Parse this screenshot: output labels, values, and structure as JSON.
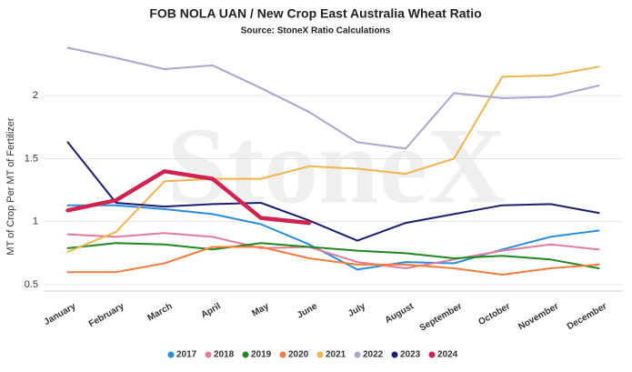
{
  "chart_data": {
    "type": "line",
    "title": "FOB NOLA UAN / New Crop East Australia Wheat Ratio",
    "subtitle": "Source: StoneX Ratio Calculations",
    "watermark": "StoneX",
    "y_label": "MT of Crop Per MT of Fertilizer",
    "categories": [
      "January",
      "February",
      "March",
      "April",
      "May",
      "June",
      "July",
      "August",
      "September",
      "October",
      "November",
      "December"
    ],
    "ylim": [
      0.45,
      2.47
    ],
    "yticks": [
      0.5,
      1.0,
      1.5,
      2.0
    ],
    "grid": true,
    "legend": "bottom",
    "series": [
      {
        "name": "2017",
        "color": "#2a8ee0",
        "width": 2,
        "values": [
          1.13,
          1.13,
          1.1,
          1.06,
          0.98,
          0.82,
          0.62,
          0.68,
          0.67,
          0.78,
          0.88,
          0.93
        ]
      },
      {
        "name": "2018",
        "color": "#e07c9c",
        "width": 2,
        "values": [
          0.9,
          0.88,
          0.91,
          0.88,
          0.79,
          0.8,
          0.68,
          0.63,
          0.7,
          0.77,
          0.82,
          0.78
        ]
      },
      {
        "name": "2019",
        "color": "#1e8a1e",
        "width": 2,
        "values": [
          0.79,
          0.83,
          0.82,
          0.78,
          0.83,
          0.8,
          0.77,
          0.75,
          0.71,
          0.73,
          0.7,
          0.63
        ]
      },
      {
        "name": "2020",
        "color": "#f47c3c",
        "width": 2,
        "values": [
          0.6,
          0.6,
          0.67,
          0.8,
          0.8,
          0.71,
          0.66,
          0.66,
          0.63,
          0.58,
          0.63,
          0.66
        ]
      },
      {
        "name": "2021",
        "color": "#f2b44c",
        "width": 2,
        "values": [
          0.76,
          0.92,
          1.32,
          1.34,
          1.34,
          1.44,
          1.42,
          1.38,
          1.5,
          2.15,
          2.16,
          2.23
        ]
      },
      {
        "name": "2022",
        "color": "#a9a6d0",
        "width": 2,
        "values": [
          2.38,
          2.3,
          2.21,
          2.24,
          2.06,
          1.87,
          1.63,
          1.58,
          2.02,
          1.98,
          1.99,
          2.08
        ]
      },
      {
        "name": "2023",
        "color": "#1a1f6e",
        "width": 2,
        "values": [
          1.63,
          1.15,
          1.12,
          1.14,
          1.15,
          1.01,
          0.85,
          0.99,
          1.06,
          1.13,
          1.14,
          1.07
        ]
      },
      {
        "name": "2024",
        "color": "#d0234f",
        "width": 4.5,
        "values": [
          1.09,
          1.17,
          1.4,
          1.34,
          1.03,
          0.99,
          null,
          null,
          null,
          null,
          null,
          null
        ]
      }
    ]
  }
}
